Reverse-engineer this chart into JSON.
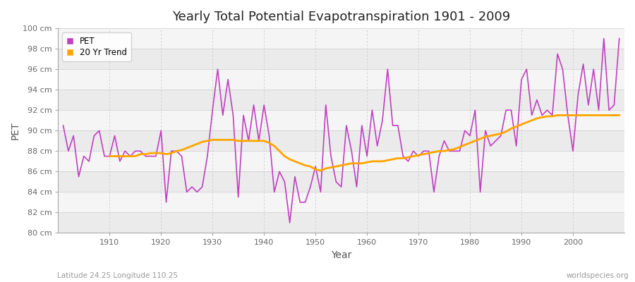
{
  "title": "Yearly Total Potential Evapotranspiration 1901 - 2009",
  "xlabel": "Year",
  "ylabel": "PET",
  "subtitle": "Latitude 24.25 Longitude 110.25",
  "watermark": "worldspecies.org",
  "ylim": [
    80,
    100
  ],
  "ytick_labels": [
    "80 cm",
    "82 cm",
    "84 cm",
    "86 cm",
    "88 cm",
    "90 cm",
    "92 cm",
    "94 cm",
    "96 cm",
    "98 cm",
    "100 cm"
  ],
  "ytick_values": [
    80,
    82,
    84,
    86,
    88,
    90,
    92,
    94,
    96,
    98,
    100
  ],
  "pet_color": "#C040C0",
  "trend_color": "#FFA500",
  "bg_color": "#FFFFFF",
  "band_color_light": "#EBEBEB",
  "band_color_white": "#F5F5F5",
  "grid_color_v": "#CCCCCC",
  "years": [
    1901,
    1902,
    1903,
    1904,
    1905,
    1906,
    1907,
    1908,
    1909,
    1910,
    1911,
    1912,
    1913,
    1914,
    1915,
    1916,
    1917,
    1918,
    1919,
    1920,
    1921,
    1922,
    1923,
    1924,
    1925,
    1926,
    1927,
    1928,
    1929,
    1930,
    1931,
    1932,
    1933,
    1934,
    1935,
    1936,
    1937,
    1938,
    1939,
    1940,
    1941,
    1942,
    1943,
    1944,
    1945,
    1946,
    1947,
    1948,
    1949,
    1950,
    1951,
    1952,
    1953,
    1954,
    1955,
    1956,
    1957,
    1958,
    1959,
    1960,
    1961,
    1962,
    1963,
    1964,
    1965,
    1966,
    1967,
    1968,
    1969,
    1970,
    1971,
    1972,
    1973,
    1974,
    1975,
    1976,
    1977,
    1978,
    1979,
    1980,
    1981,
    1982,
    1983,
    1984,
    1985,
    1986,
    1987,
    1988,
    1989,
    1990,
    1991,
    1992,
    1993,
    1994,
    1995,
    1996,
    1997,
    1998,
    1999,
    2000,
    2001,
    2002,
    2003,
    2004,
    2005,
    2006,
    2007,
    2008,
    2009
  ],
  "pet_values": [
    90.5,
    88.0,
    89.5,
    85.5,
    87.5,
    87.0,
    89.5,
    90.0,
    87.5,
    87.5,
    89.5,
    87.0,
    88.0,
    87.5,
    88.0,
    88.0,
    87.5,
    87.5,
    87.5,
    90.0,
    83.0,
    88.0,
    88.0,
    87.5,
    84.0,
    84.5,
    84.0,
    84.5,
    87.5,
    92.0,
    96.0,
    91.5,
    95.0,
    91.5,
    83.5,
    91.5,
    89.0,
    92.5,
    89.0,
    92.5,
    89.5,
    84.0,
    86.0,
    85.0,
    81.0,
    85.5,
    83.0,
    83.0,
    84.5,
    86.5,
    84.0,
    92.5,
    87.5,
    85.0,
    84.5,
    90.5,
    88.0,
    84.5,
    90.5,
    87.5,
    92.0,
    88.5,
    91.0,
    96.0,
    90.5,
    90.5,
    87.5,
    87.0,
    88.0,
    87.5,
    88.0,
    88.0,
    84.0,
    87.5,
    89.0,
    88.0,
    88.0,
    88.0,
    90.0,
    89.5,
    92.0,
    84.0,
    90.0,
    88.5,
    89.0,
    89.5,
    92.0,
    92.0,
    88.5,
    95.0,
    96.0,
    91.5,
    93.0,
    91.5,
    92.0,
    91.5,
    97.5,
    96.0,
    91.5,
    88.0,
    93.5,
    96.5,
    92.5,
    96.0,
    92.0,
    99.0,
    92.0,
    92.5,
    99.0
  ],
  "trend_years": [
    1910,
    1911,
    1912,
    1913,
    1914,
    1915,
    1916,
    1917,
    1918,
    1919,
    1920,
    1921,
    1922,
    1923,
    1924,
    1925,
    1926,
    1927,
    1928,
    1929,
    1930,
    1931,
    1932,
    1933,
    1934,
    1935,
    1936,
    1937,
    1938,
    1939,
    1940,
    1941,
    1942,
    1943,
    1944,
    1945,
    1946,
    1947,
    1948,
    1949,
    1950,
    1951,
    1952,
    1953,
    1954,
    1955,
    1956,
    1957,
    1958,
    1959,
    1960,
    1961,
    1962,
    1963,
    1964,
    1965,
    1966,
    1967,
    1968,
    1969,
    1970,
    1971,
    1972,
    1973,
    1974,
    1975,
    1976,
    1977,
    1978,
    1979,
    1980,
    1981,
    1982,
    1983,
    1984,
    1985,
    1986,
    1987,
    1988,
    1989,
    1990,
    1991,
    1992,
    1993,
    1994,
    1995,
    1996,
    1997,
    1998,
    1999,
    2000,
    2001,
    2002,
    2003,
    2004,
    2005,
    2006,
    2007,
    2008,
    2009
  ],
  "trend_values": [
    87.5,
    87.5,
    87.5,
    87.5,
    87.5,
    87.5,
    87.7,
    87.7,
    87.8,
    87.8,
    87.8,
    87.7,
    87.8,
    88.0,
    88.1,
    88.3,
    88.5,
    88.7,
    88.9,
    89.0,
    89.1,
    89.1,
    89.1,
    89.1,
    89.1,
    89.0,
    89.0,
    89.0,
    89.0,
    89.0,
    89.0,
    88.8,
    88.5,
    88.0,
    87.5,
    87.2,
    87.0,
    86.8,
    86.6,
    86.5,
    86.2,
    86.1,
    86.3,
    86.4,
    86.5,
    86.6,
    86.7,
    86.8,
    86.8,
    86.8,
    86.9,
    87.0,
    87.0,
    87.0,
    87.1,
    87.2,
    87.3,
    87.3,
    87.4,
    87.5,
    87.6,
    87.7,
    87.8,
    87.9,
    88.0,
    88.0,
    88.1,
    88.2,
    88.4,
    88.6,
    88.8,
    89.0,
    89.2,
    89.4,
    89.5,
    89.6,
    89.7,
    89.9,
    90.2,
    90.4,
    90.6,
    90.8,
    91.0,
    91.2,
    91.3,
    91.4,
    91.4,
    91.5,
    91.5,
    91.5,
    91.5,
    91.5,
    91.5,
    91.5,
    91.5,
    91.5,
    91.5,
    91.5,
    91.5,
    91.5
  ]
}
